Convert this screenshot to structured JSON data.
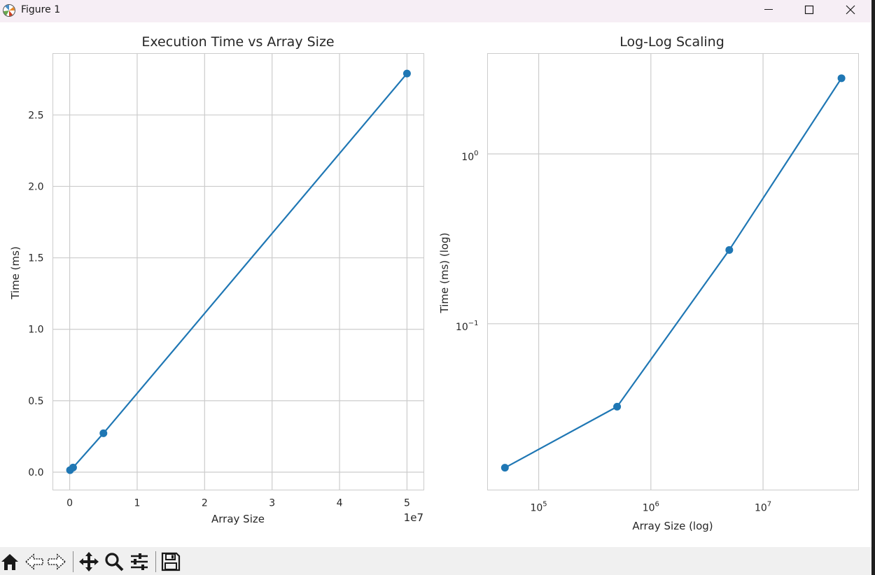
{
  "window": {
    "title": "Figure 1",
    "minimize_icon": "minimize-icon",
    "maximize_icon": "maximize-icon",
    "close_icon": "close-icon"
  },
  "toolbar": {
    "icons": [
      "home-icon",
      "back-arrow-icon",
      "forward-arrow-icon",
      "pan-icon",
      "zoom-icon",
      "configure-subplots-icon",
      "save-icon"
    ]
  },
  "colors": {
    "series": "#1f77b4",
    "grid": "#cccccc",
    "axes_edge": "#cccccc",
    "titlebar": "#f6eef5",
    "toolbar": "#f0f0f0"
  },
  "chart_data": [
    {
      "type": "line",
      "title": "Execution Time vs Array Size",
      "xlabel": "Array Size",
      "ylabel": "Time (ms)",
      "x_offset_label": "1e7",
      "x": [
        50000,
        500000,
        5000000,
        50000000
      ],
      "series": [
        {
          "values": [
            0.0142,
            0.0325,
            0.272,
            2.79
          ],
          "marker": "circle"
        }
      ],
      "xlim": [
        -2500000,
        52500000
      ],
      "ylim": [
        -0.125,
        2.93
      ],
      "xticks": [
        0,
        10000000,
        20000000,
        30000000,
        40000000,
        50000000
      ],
      "xtick_labels": [
        "0",
        "1",
        "2",
        "3",
        "4",
        "5"
      ],
      "yticks": [
        0.0,
        0.5,
        1.0,
        1.5,
        2.0,
        2.5
      ],
      "ytick_labels": [
        "0.0",
        "0.5",
        "1.0",
        "1.5",
        "2.0",
        "2.5"
      ],
      "grid": true,
      "xscale": "linear",
      "yscale": "linear"
    },
    {
      "type": "line",
      "title": "Log-Log Scaling",
      "xlabel": "Array Size (log)",
      "ylabel": "Time (ms) (log)",
      "x": [
        50000,
        500000,
        5000000,
        50000000
      ],
      "series": [
        {
          "values": [
            0.0142,
            0.0325,
            0.272,
            2.79
          ],
          "marker": "circle"
        }
      ],
      "xlim": [
        35000,
        71000000
      ],
      "ylim": [
        0.0105,
        3.9
      ],
      "xticks": [
        100000,
        1000000,
        10000000
      ],
      "xtick_labels": [
        {
          "base": "10",
          "exp": "5"
        },
        {
          "base": "10",
          "exp": "6"
        },
        {
          "base": "10",
          "exp": "7"
        }
      ],
      "yticks": [
        0.1,
        1
      ],
      "ytick_labels": [
        {
          "base": "10",
          "exp": "−1"
        },
        {
          "base": "10",
          "exp": "0"
        }
      ],
      "grid": true,
      "xscale": "log",
      "yscale": "log"
    }
  ]
}
